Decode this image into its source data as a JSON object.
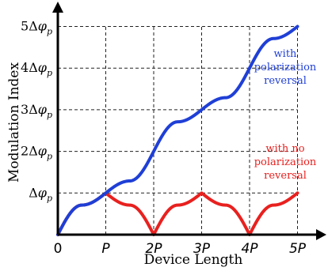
{
  "chart_data": {
    "type": "line",
    "title": "",
    "xlabel": "Device Length",
    "ylabel": "Modulation Index",
    "xlim": [
      0,
      5
    ],
    "ylim": [
      0,
      5
    ],
    "x_ticks": [
      {
        "value": 0,
        "label": "0"
      },
      {
        "value": 1,
        "label": "P"
      },
      {
        "value": 2,
        "label": "2P"
      },
      {
        "value": 3,
        "label": "3P"
      },
      {
        "value": 4,
        "label": "4P"
      },
      {
        "value": 5,
        "label": "5P"
      }
    ],
    "y_ticks": [
      {
        "value": 1,
        "prefix": "",
        "label": "Δφ",
        "sub": "p"
      },
      {
        "value": 2,
        "prefix": "2",
        "label": "Δφ",
        "sub": "p"
      },
      {
        "value": 3,
        "prefix": "3",
        "label": "Δφ",
        "sub": "p"
      },
      {
        "value": 4,
        "prefix": "4",
        "label": "Δφ",
        "sub": "p"
      },
      {
        "value": 5,
        "prefix": "5",
        "label": "Δφ",
        "sub": "p"
      }
    ],
    "grid": "dashed",
    "series": [
      {
        "name": "with polarization reversal",
        "name_lines": [
          "with",
          "polarization",
          "reversal"
        ],
        "color": "#1f3fd6",
        "x": [
          0,
          0.5,
          1,
          1.5,
          2,
          2.5,
          3,
          3.5,
          4,
          4.5,
          5
        ],
        "y": [
          0,
          0.71,
          1,
          1.29,
          2,
          2.71,
          3,
          3.29,
          4,
          4.71,
          5
        ]
      },
      {
        "name": "with no polarization reversal",
        "name_lines": [
          "with no",
          "polarization",
          "reversal"
        ],
        "color": "#e8211f",
        "x": [
          0,
          0.5,
          1,
          1.5,
          2,
          2.5,
          3,
          3.5,
          4,
          4.5,
          5
        ],
        "y": [
          0,
          0.71,
          1,
          0.71,
          0,
          0.71,
          1,
          0.71,
          0,
          0.71,
          1
        ]
      }
    ]
  }
}
